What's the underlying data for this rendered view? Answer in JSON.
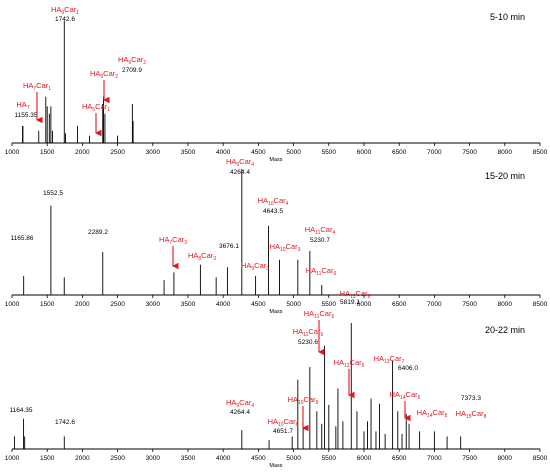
{
  "colors": {
    "axis": "#000000",
    "peak": "#000000",
    "annotation": "#e8141c",
    "label": "#000000"
  },
  "chart_data": [
    {
      "type": "bar",
      "title": "5-10 min",
      "xlabel": "Mass",
      "xlim": [
        1000,
        8500
      ],
      "xticks": [
        1000,
        1500,
        2000,
        2500,
        3000,
        3500,
        4000,
        4500,
        5000,
        5500,
        6000,
        6500,
        7000,
        7500,
        8000,
        8500
      ],
      "ylim": [
        0,
        100
      ],
      "peaks": [
        [
          1150,
          14
        ],
        [
          1155.35,
          14
        ],
        [
          1380,
          10
        ],
        [
          1480,
          38
        ],
        [
          1500,
          30
        ],
        [
          1530,
          24
        ],
        [
          1552,
          30
        ],
        [
          1575,
          10
        ],
        [
          1742.6,
          100
        ],
        [
          1760,
          8
        ],
        [
          1930,
          14
        ],
        [
          2100,
          6
        ],
        [
          2289,
          32
        ],
        [
          2300,
          38
        ],
        [
          2320,
          24
        ],
        [
          2500,
          6
        ],
        [
          2709.9,
          32
        ],
        [
          2720,
          18
        ]
      ],
      "data_labels": [
        {
          "mass": 1742.6,
          "text": "1742.6"
        },
        {
          "mass": 1155.35,
          "text": "1155.35"
        },
        {
          "mass": 2709.9,
          "text": "2709.9"
        }
      ],
      "annotations": [
        {
          "HA": "9",
          "Car": "1",
          "mass": 1742.6,
          "arrow": false
        },
        {
          "HA": "7",
          "Car": "1",
          "mass": 1450,
          "arrow": true
        },
        {
          "HA": "7",
          "Car": "",
          "mass": 1155.35,
          "arrow": false
        },
        {
          "HA": "9",
          "Car": "2",
          "mass": 2289,
          "arrow": true
        },
        {
          "HA": "5",
          "Car": "1",
          "mass": 2100,
          "arrow": true
        },
        {
          "HA": "9",
          "Car": "2",
          "mass": 2709.9,
          "arrow": false
        }
      ]
    },
    {
      "type": "bar",
      "title": "15-20 min",
      "xlabel": "Mass",
      "xlim": [
        1000,
        8500
      ],
      "xticks": [
        1000,
        1500,
        2000,
        2500,
        3000,
        3500,
        4000,
        4500,
        5000,
        5500,
        6000,
        6500,
        7000,
        7500,
        8000,
        8500
      ],
      "ylim": [
        0,
        100
      ],
      "peaks": [
        [
          1165.86,
          15
        ],
        [
          1552.5,
          71
        ],
        [
          1742,
          14
        ],
        [
          2289.2,
          34
        ],
        [
          3160,
          12
        ],
        [
          3300,
          18
        ],
        [
          3676.1,
          24
        ],
        [
          3900,
          14
        ],
        [
          4060,
          22
        ],
        [
          4264.4,
          100
        ],
        [
          4460,
          15
        ],
        [
          4643.5,
          55
        ],
        [
          4800,
          28
        ],
        [
          5060,
          28
        ],
        [
          5230.7,
          35
        ],
        [
          5400,
          8
        ]
      ],
      "data_labels": [
        {
          "mass": 1552.5,
          "text": "1552.5"
        },
        {
          "mass": 1165.86,
          "text": "1165.86"
        },
        {
          "mass": 2289.2,
          "text": "2289.2"
        },
        {
          "mass": 3676.1,
          "text": "3676.1"
        },
        {
          "mass": 4264.4,
          "text": "4264.4"
        },
        {
          "mass": 4643.5,
          "text": "4643.5"
        },
        {
          "mass": 5230.7,
          "text": "5230.7"
        }
      ],
      "annotations": [
        {
          "HA": "7",
          "Car": "3",
          "mass": 3300,
          "arrow": true
        },
        {
          "HA": "8",
          "Car": "3",
          "mass": 3676.1,
          "arrow": false
        },
        {
          "HA": "9",
          "Car": "4",
          "mass": 4264.4,
          "arrow": false
        },
        {
          "HA": "10",
          "Car": "4",
          "mass": 4643.5,
          "arrow": false
        },
        {
          "HA": "10",
          "Car": "3",
          "mass": 4810,
          "arrow": false
        },
        {
          "HA": "9",
          "Car": "3",
          "mass": 4460,
          "arrow": false
        },
        {
          "HA": "11",
          "Car": "4",
          "mass": 5230.7,
          "arrow": false
        },
        {
          "HA": "11",
          "Car": "6",
          "mass": 5400,
          "arrow": false
        }
      ]
    },
    {
      "type": "bar",
      "title": "20-22 min",
      "xlabel": "Mass",
      "xlim": [
        1000,
        8500
      ],
      "xticks": [
        1000,
        1500,
        2000,
        2500,
        3000,
        3500,
        4000,
        4500,
        5000,
        5500,
        6000,
        6500,
        7000,
        7500,
        8000,
        8500
      ],
      "ylim": [
        0,
        100
      ],
      "peaks": [
        [
          1035,
          10
        ],
        [
          1164.35,
          24
        ],
        [
          1180,
          10
        ],
        [
          1742.6,
          10
        ],
        [
          4264.4,
          15
        ],
        [
          4651.7,
          7
        ],
        [
          4980,
          10
        ],
        [
          5060,
          55
        ],
        [
          5135,
          20
        ],
        [
          5230.6,
          65
        ],
        [
          5330,
          30
        ],
        [
          5400,
          20
        ],
        [
          5440,
          82
        ],
        [
          5500,
          35
        ],
        [
          5600,
          18
        ],
        [
          5630,
          48
        ],
        [
          5700,
          22
        ],
        [
          5819.1,
          100
        ],
        [
          5900,
          30
        ],
        [
          6000,
          14
        ],
        [
          6050,
          22
        ],
        [
          6100,
          40
        ],
        [
          6170,
          14
        ],
        [
          6220,
          36
        ],
        [
          6300,
          12
        ],
        [
          6406.0,
          70
        ],
        [
          6480,
          30
        ],
        [
          6540,
          12
        ],
        [
          6600,
          28
        ],
        [
          6640,
          20
        ],
        [
          6790,
          14
        ],
        [
          7000,
          14
        ],
        [
          7180,
          10
        ],
        [
          7373.3,
          10
        ]
      ],
      "data_labels": [
        {
          "mass": 1164.35,
          "text": "1164.35"
        },
        {
          "mass": 1742.6,
          "text": "1742.6"
        },
        {
          "mass": 4264.4,
          "text": "4264.4"
        },
        {
          "mass": 4651.7,
          "text": "4651.7"
        },
        {
          "mass": 5230.6,
          "text": "5230.6"
        },
        {
          "mass": 5819.1,
          "text": "5819.1"
        },
        {
          "mass": 6406.0,
          "text": "6406.0"
        },
        {
          "mass": 7373.3,
          "text": "7373.3"
        }
      ],
      "annotations": [
        {
          "HA": "9",
          "Car": "4",
          "mass": 4264.4,
          "arrow": false
        },
        {
          "HA": "10",
          "Car": "5",
          "mass": 4900,
          "arrow": true
        },
        {
          "HA": "10",
          "Car": "6",
          "mass": 4651.7,
          "arrow": false
        },
        {
          "HA": "11",
          "Car": "6",
          "mass": 5440,
          "arrow": true
        },
        {
          "HA": "11",
          "Car": "5",
          "mass": 5230.6,
          "arrow": false
        },
        {
          "HA": "13",
          "Car": "6",
          "mass": 5819.1,
          "arrow": false
        },
        {
          "HA": "12",
          "Car": "5",
          "mass": 5640,
          "arrow": true
        },
        {
          "HA": "13",
          "Car": "7",
          "mass": 6406.0,
          "arrow": false
        },
        {
          "HA": "14",
          "Car": "6",
          "mass": 6600,
          "arrow": true
        },
        {
          "HA": "14",
          "Car": "8",
          "mass": 7000,
          "arrow": false
        },
        {
          "HA": "15",
          "Car": "8",
          "mass": 7373.3,
          "arrow": false
        }
      ]
    }
  ]
}
